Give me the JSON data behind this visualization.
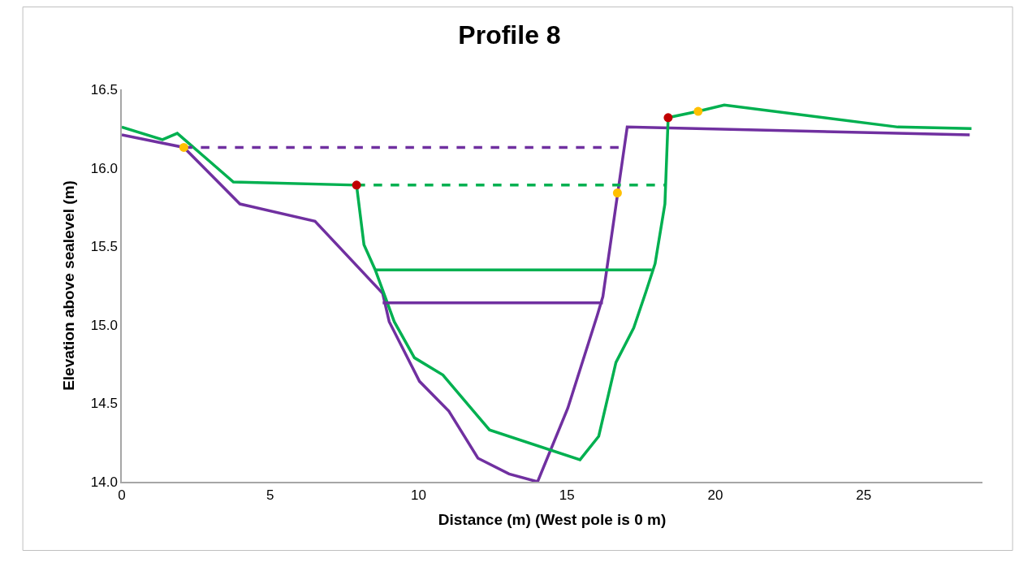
{
  "chart_data": {
    "type": "line",
    "title": "Profile 8",
    "xlabel": "Distance (m) (West pole is 0 m)",
    "ylabel": "Elevation above sealevel (m)",
    "xlim": [
      0,
      29
    ],
    "xticks": [
      0,
      5,
      10,
      15,
      20,
      25
    ],
    "ylim": [
      14.0,
      16.5
    ],
    "yticks": [
      {
        "value": 14.0,
        "label": "14.0"
      },
      {
        "value": 14.5,
        "label": "14.5"
      },
      {
        "value": 15.0,
        "label": "15.0"
      },
      {
        "value": 15.5,
        "label": "15.5"
      },
      {
        "value": 16.0,
        "label": "16.0"
      },
      {
        "value": 16.5,
        "label": "16.5"
      }
    ],
    "grid": false,
    "series": [
      {
        "color": "#7030a0",
        "line_style": "solid",
        "marker": "none",
        "x": [
          0,
          2.09,
          3.98,
          6.51,
          8.79,
          9.01,
          10.03,
          11.02,
          12.0,
          13.05,
          14.01,
          15.03,
          16.02,
          16.21,
          17.03,
          28.57
        ],
        "values": [
          16.21,
          16.13,
          15.77,
          15.66,
          15.2,
          15.02,
          14.64,
          14.45,
          14.15,
          14.05,
          14.0,
          14.47,
          15.06,
          15.18,
          16.26,
          16.21
        ]
      },
      {
        "color": "#00b050",
        "line_style": "solid",
        "marker": "none",
        "x": [
          0,
          1.37,
          1.87,
          3.76,
          7.91,
          8.16,
          8.54,
          9.18,
          9.86,
          10.82,
          12.39,
          15.44,
          16.07,
          16.65,
          17.25,
          17.66,
          17.97,
          18.3,
          18.41,
          19.42,
          20.3,
          26.15,
          28.63
        ],
        "values": [
          16.26,
          16.18,
          16.22,
          15.91,
          15.89,
          15.51,
          15.35,
          15.02,
          14.79,
          14.68,
          14.33,
          14.14,
          14.29,
          14.76,
          14.98,
          15.21,
          15.39,
          15.77,
          16.32,
          16.36,
          16.4,
          16.26,
          16.25
        ]
      },
      {
        "color": "#7030a0",
        "line_style": "solid",
        "marker": "none",
        "x": [
          8.79,
          16.21
        ],
        "values": [
          15.14,
          15.14
        ]
      },
      {
        "color": "#00b050",
        "line_style": "solid",
        "marker": "none",
        "x": [
          8.54,
          17.86
        ],
        "values": [
          15.35,
          15.35
        ]
      },
      {
        "color": "#7030a0",
        "line_style": "dashed",
        "marker": "none",
        "x": [
          2.09,
          16.9
        ],
        "values": [
          16.13,
          16.13
        ]
      },
      {
        "color": "#00b050",
        "line_style": "dashed",
        "marker": "none",
        "x": [
          7.91,
          18.3
        ],
        "values": [
          15.89,
          15.89
        ]
      },
      {
        "type": "scatter",
        "color": "#c00000",
        "marker": "circle",
        "x": [
          7.91,
          18.41
        ],
        "values": [
          15.89,
          16.32
        ]
      },
      {
        "type": "scatter",
        "color": "#ffc000",
        "marker": "circle",
        "x": [
          2.09,
          16.7,
          19.42
        ],
        "values": [
          16.13,
          15.84,
          16.36
        ]
      }
    ]
  }
}
